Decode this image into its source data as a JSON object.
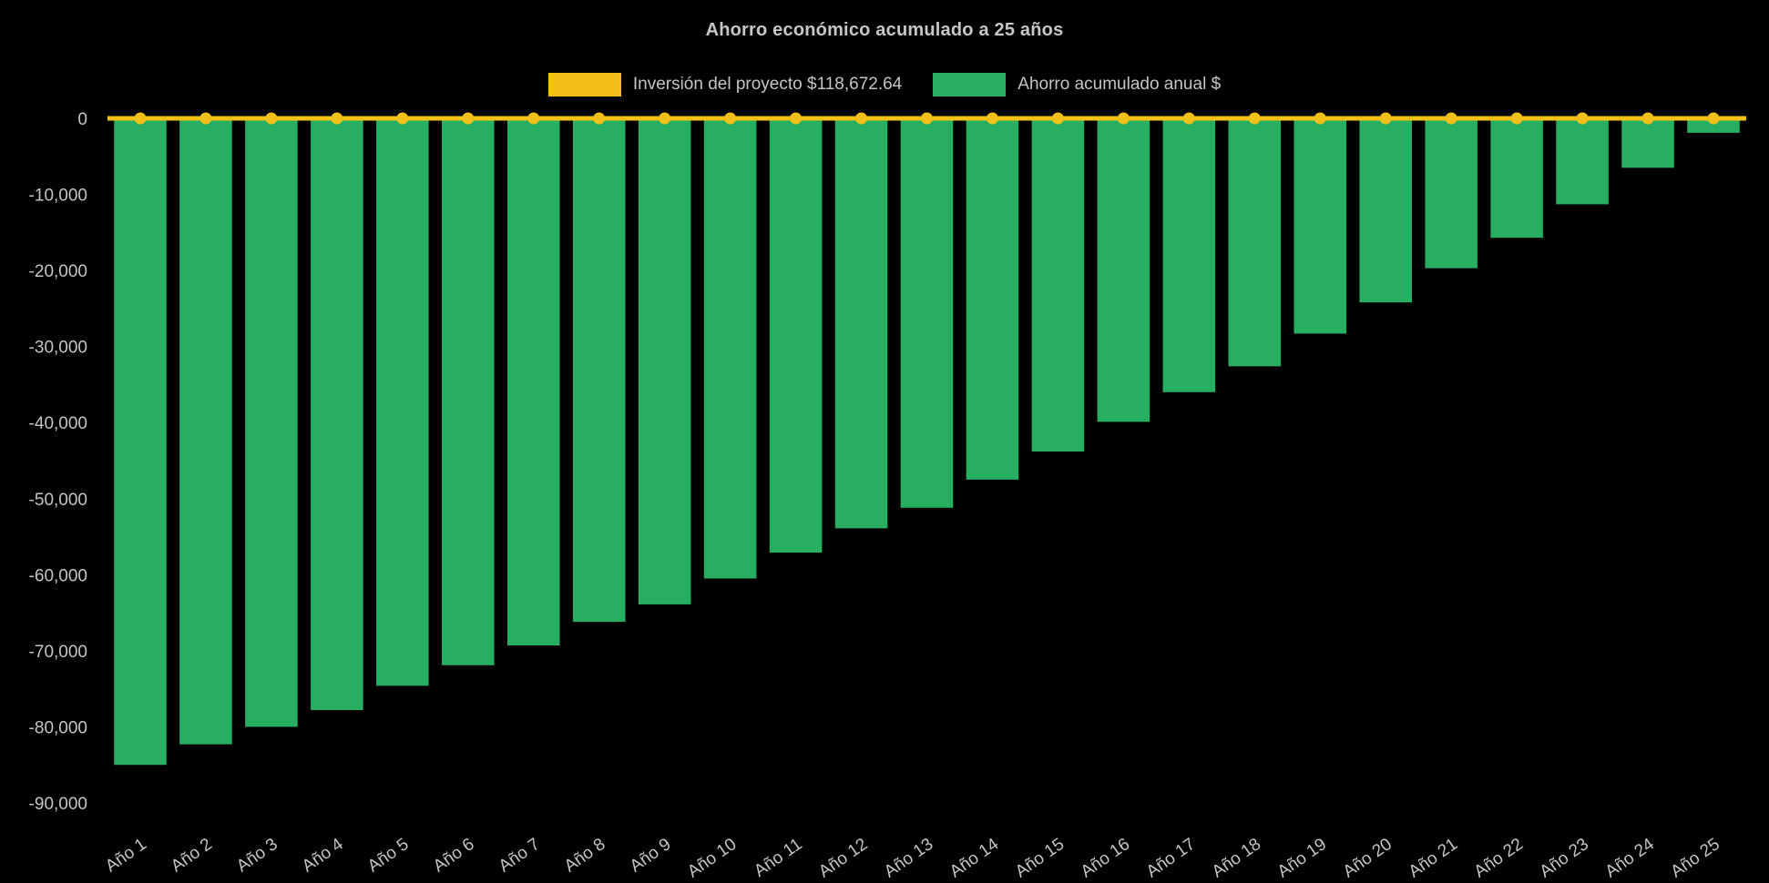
{
  "chart_data": {
    "type": "bar",
    "title": "Ahorro económico acumulado a 25 años",
    "categories": [
      "Año 1",
      "Año 2",
      "Año 3",
      "Año 4",
      "Año 5",
      "Año 6",
      "Año 7",
      "Año 8",
      "Año 9",
      "Año 10",
      "Año 11",
      "Año 12",
      "Año 13",
      "Año 14",
      "Año 15",
      "Año 16",
      "Año 17",
      "Año 18",
      "Año 19",
      "Año 20",
      "Año 21",
      "Año 22",
      "Año 23",
      "Año 24",
      "Año 25"
    ],
    "series": [
      {
        "name": "Inversión del proyecto $118,672.64",
        "type": "line",
        "color": "#f2c018",
        "values": [
          0,
          0,
          0,
          0,
          0,
          0,
          0,
          0,
          0,
          0,
          0,
          0,
          0,
          0,
          0,
          0,
          0,
          0,
          0,
          0,
          0,
          0,
          0,
          0,
          0
        ]
      },
      {
        "name": "Ahorro acumulado anual $",
        "type": "bar",
        "color": "#27ae60",
        "values": [
          -85000,
          -82300,
          -80000,
          -77800,
          -74600,
          -71900,
          -69300,
          -66200,
          -63900,
          -60500,
          -57100,
          -53900,
          -51200,
          -47500,
          -43800,
          -39900,
          -36000,
          -32600,
          -28300,
          -24200,
          -19700,
          -15700,
          -11300,
          -6500,
          -1900
        ]
      }
    ],
    "ylim": [
      -90000,
      0
    ],
    "yticks": [
      0,
      -10000,
      -20000,
      -30000,
      -40000,
      -50000,
      -60000,
      -70000,
      -80000,
      -90000
    ],
    "yticklabels": [
      "0",
      "-10,000",
      "-20,000",
      "-30,000",
      "-40,000",
      "-50,000",
      "-60,000",
      "-70,000",
      "-80,000",
      "-90,000"
    ],
    "grid": false,
    "legend_position": "top",
    "background": "#000000",
    "text_color": "#c4c4c4",
    "xlabel": "",
    "ylabel": ""
  }
}
